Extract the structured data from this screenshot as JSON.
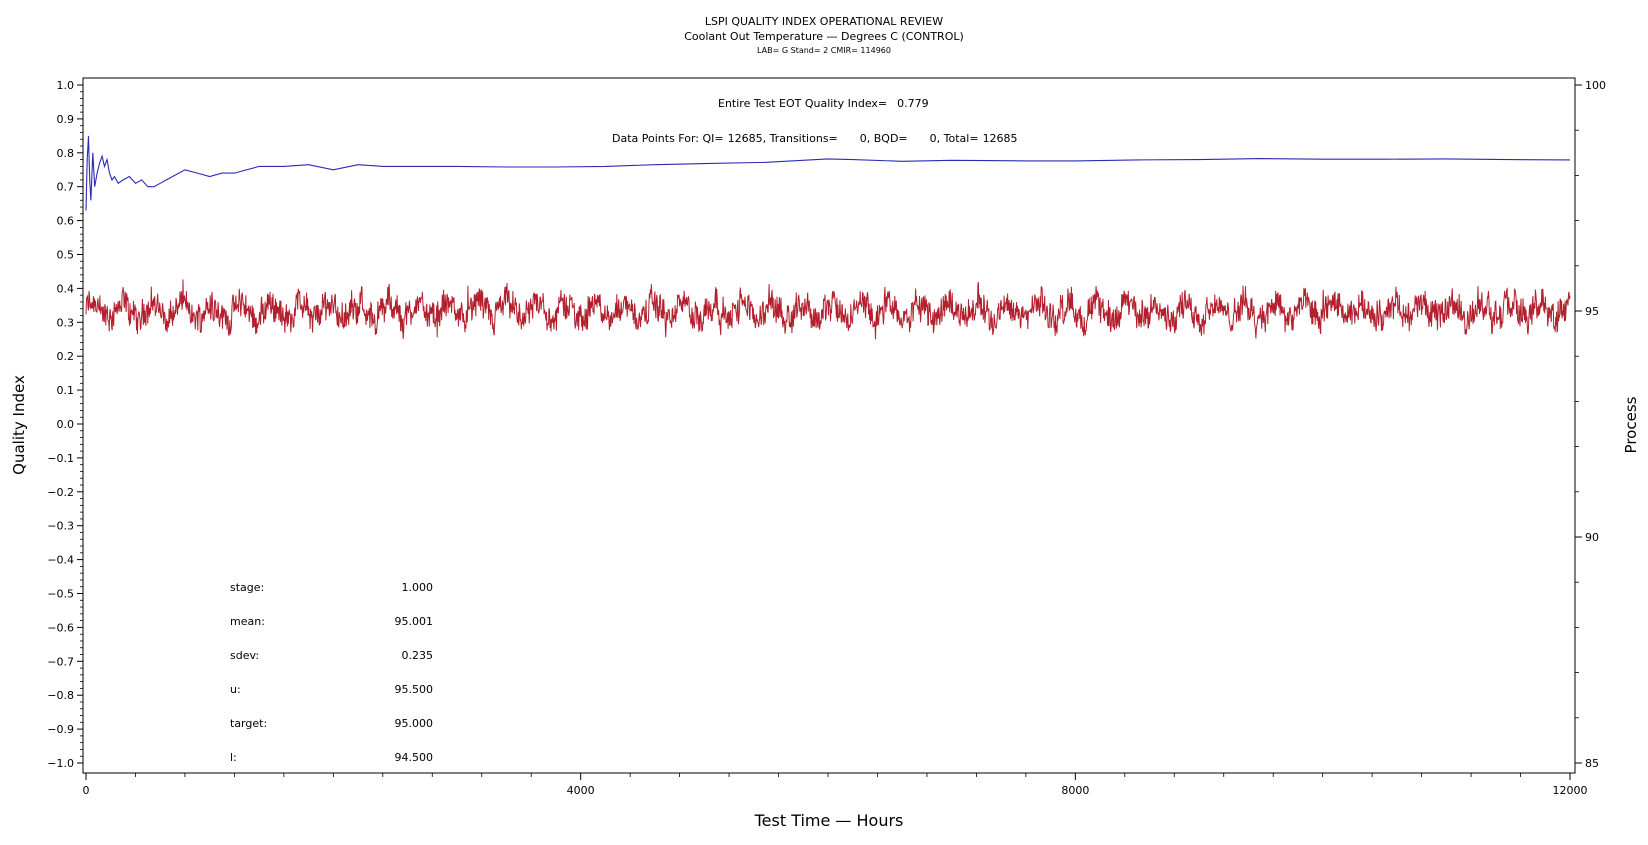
{
  "chart_data": {
    "type": "line",
    "title": "LSPI QUALITY INDEX OPERATIONAL REVIEW",
    "subtitle": "Coolant Out Temperature — Degrees C (CONTROL)",
    "subtitle2": "LAB= G Stand= 2 CMIR= 114960",
    "xlabel": "Test Time — Hours",
    "ylabel": "Quality Index",
    "y2label": "Process",
    "xlim": [
      0,
      12000
    ],
    "ylim": [
      -1.0,
      1.0
    ],
    "y2lim": [
      85,
      100
    ],
    "x_ticks": [
      "0",
      "4000",
      "8000",
      "12000"
    ],
    "y_ticks": [
      "1.0",
      "0.9",
      "0.8",
      "0.7",
      "0.6",
      "0.5",
      "0.4",
      "0.3",
      "0.2",
      "0.1",
      "0.0",
      "−0.1",
      "−0.2",
      "−0.3",
      "−0.4",
      "−0.5",
      "−0.6",
      "−0.7",
      "−0.8",
      "−0.9",
      "−1.0"
    ],
    "y2_ticks": [
      "100",
      "95",
      "90",
      "85"
    ],
    "annotations": {
      "qi_label": "Entire Test EOT Quality Index=",
      "qi_value": "0.779",
      "dp_label": "Data Points For: QI=",
      "dp_qi": "12685",
      "dp_trans_label": ", Transitions=",
      "dp_trans": "0",
      "dp_bqd_label": ", BQD=",
      "dp_bqd": "0",
      "dp_total_label": ", Total=",
      "dp_total": "12685"
    },
    "stats": [
      {
        "label": "stage:",
        "value": "1.000"
      },
      {
        "label": "mean:",
        "value": "95.001"
      },
      {
        "label": "sdev:",
        "value": "0.235"
      },
      {
        "label": "u:",
        "value": "95.500"
      },
      {
        "label": "target:",
        "value": "95.000"
      },
      {
        "label": "l:",
        "value": "94.500"
      }
    ],
    "series": [
      {
        "color": "#2b2bb8",
        "axis": "left",
        "x": [
          0,
          10,
          20,
          30,
          40,
          55,
          70,
          90,
          110,
          130,
          150,
          170,
          190,
          210,
          230,
          260,
          300,
          350,
          400,
          450,
          500,
          550,
          600,
          650,
          700,
          800,
          900,
          1000,
          1100,
          1200,
          1400,
          1600,
          1800,
          2000,
          2200,
          2400,
          2600,
          2800,
          3000,
          3400,
          3800,
          4200,
          4600,
          5000,
          5500,
          6000,
          6200,
          6600,
          7000,
          7600,
          8000,
          8500,
          9000,
          9500,
          10000,
          10500,
          11000,
          11500,
          12000
        ],
        "y": [
          0.63,
          0.78,
          0.85,
          0.72,
          0.66,
          0.8,
          0.7,
          0.74,
          0.77,
          0.79,
          0.76,
          0.78,
          0.74,
          0.72,
          0.73,
          0.71,
          0.72,
          0.73,
          0.71,
          0.72,
          0.7,
          0.7,
          0.71,
          0.72,
          0.73,
          0.75,
          0.74,
          0.73,
          0.74,
          0.74,
          0.76,
          0.76,
          0.765,
          0.75,
          0.765,
          0.76,
          0.76,
          0.76,
          0.76,
          0.758,
          0.758,
          0.76,
          0.765,
          0.768,
          0.772,
          0.782,
          0.78,
          0.775,
          0.778,
          0.776,
          0.776,
          0.779,
          0.78,
          0.783,
          0.781,
          0.781,
          0.782,
          0.78,
          0.779
        ]
      },
      {
        "color": "#b21f2d",
        "axis": "right",
        "mean": 95.0,
        "sdev": 0.235,
        "range": [
          94.2,
          95.7
        ],
        "x_range": [
          0,
          12000
        ]
      }
    ]
  }
}
